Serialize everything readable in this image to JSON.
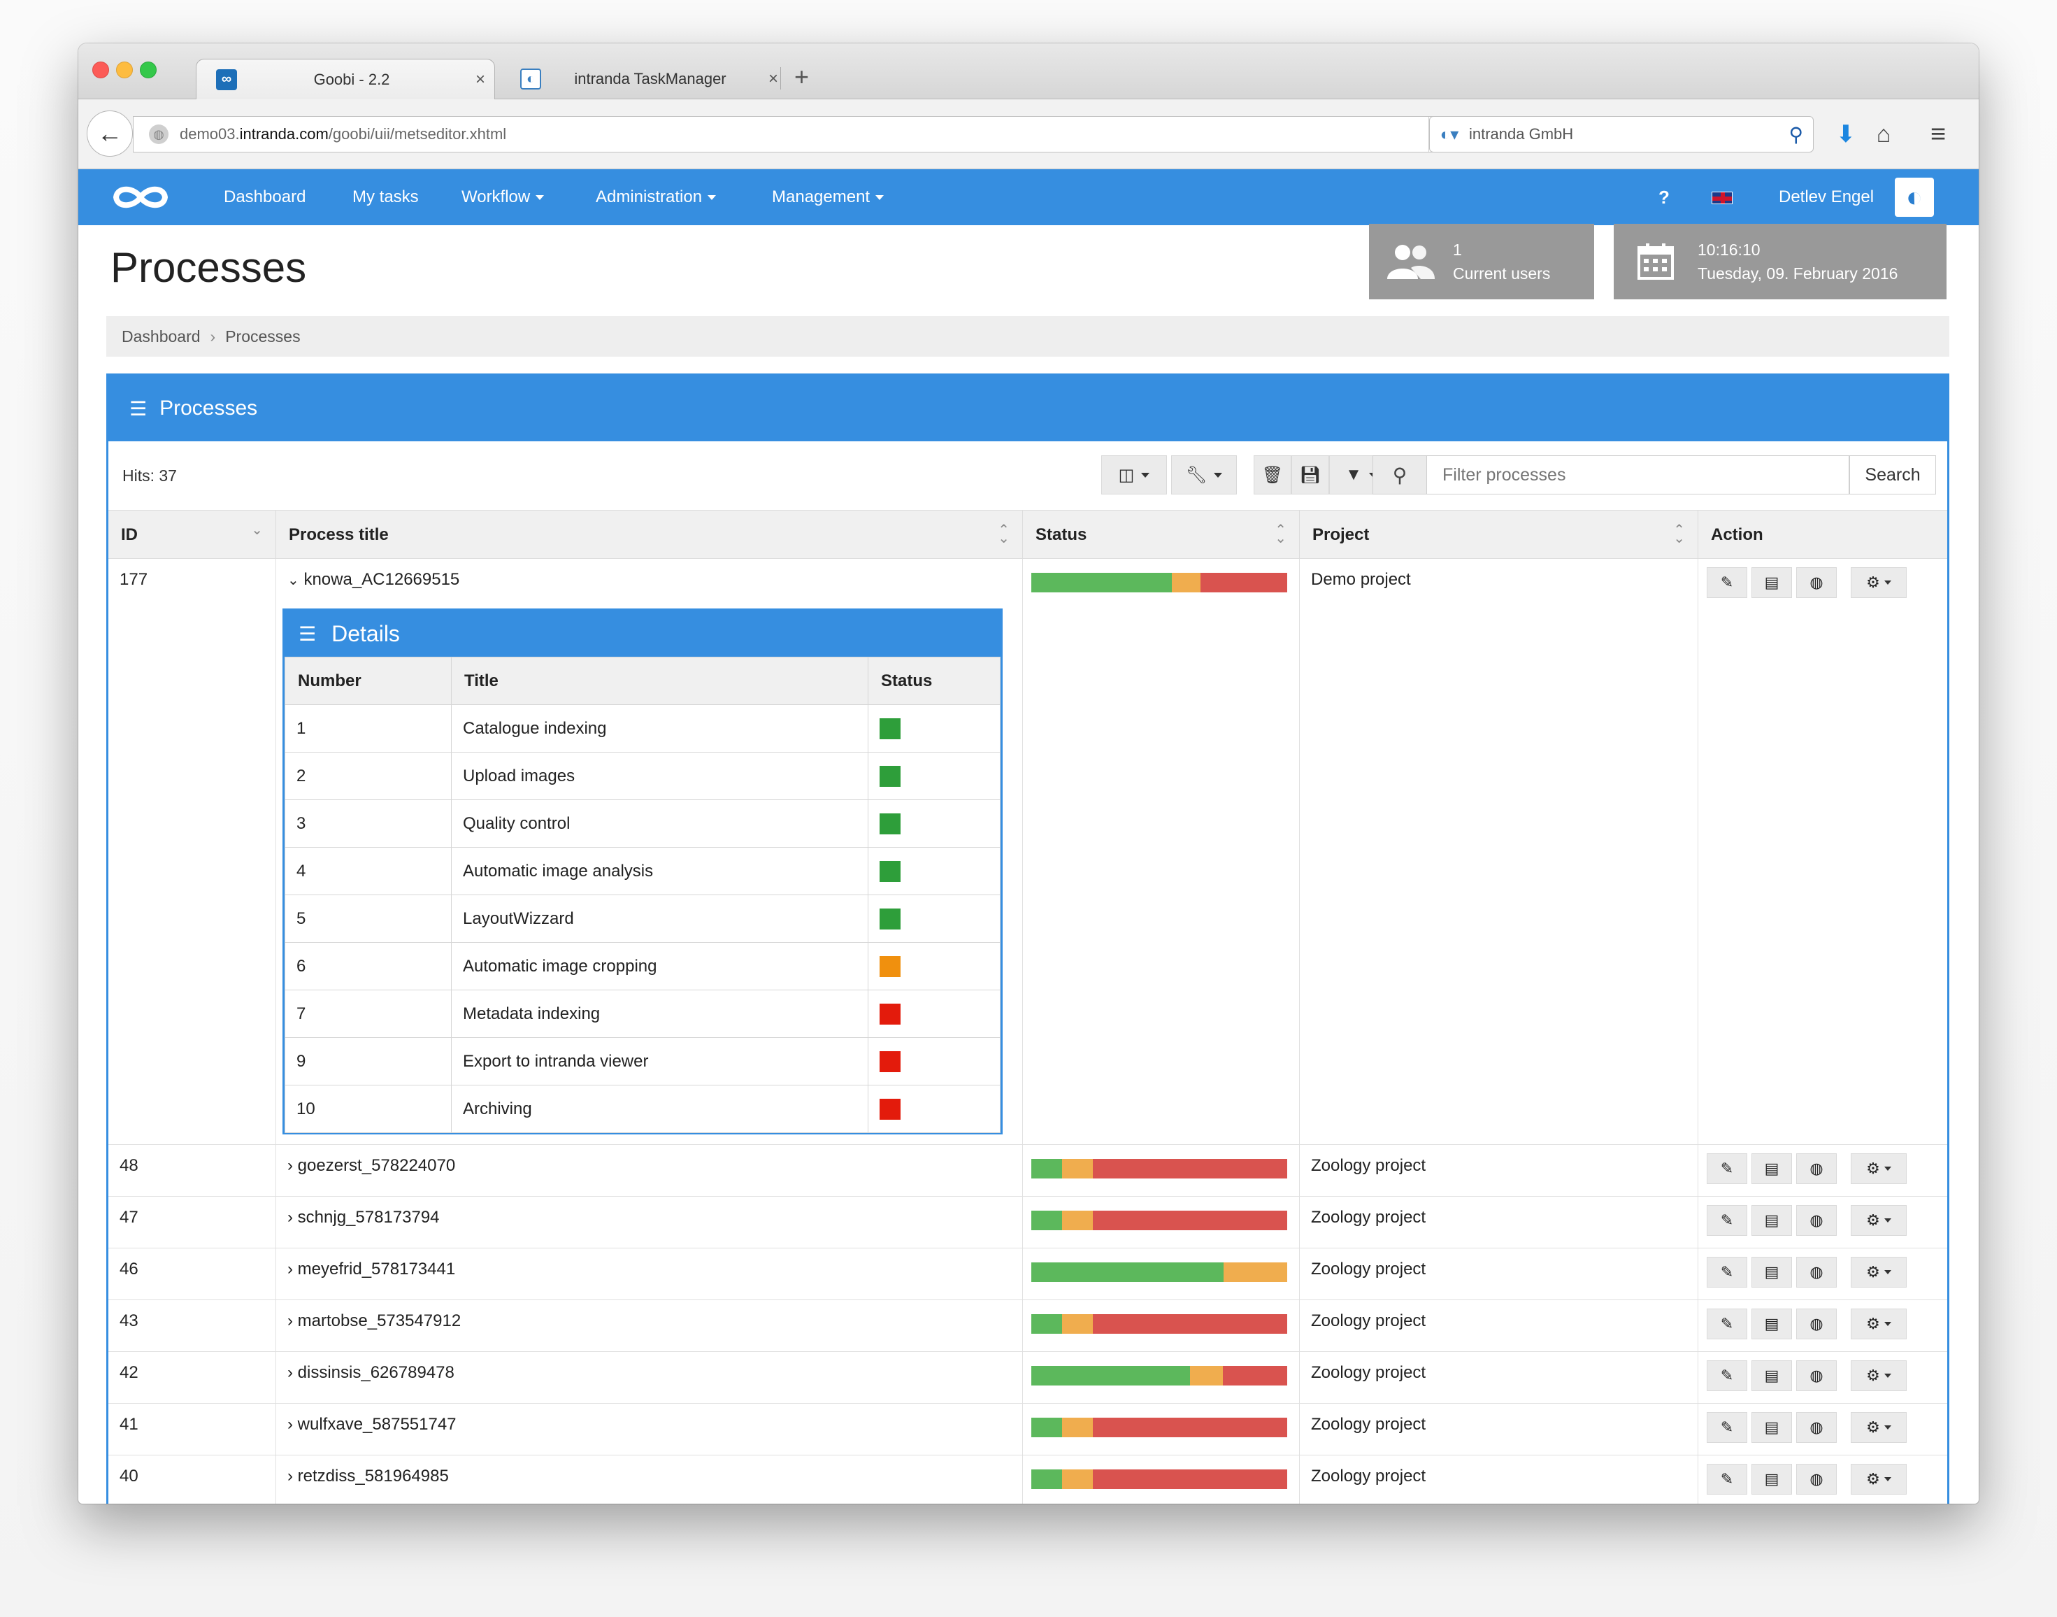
{
  "browser": {
    "tabs": [
      {
        "title": "Goobi - 2.2",
        "icon": "goobi-favicon",
        "active": true
      },
      {
        "title": "intranda TaskManager",
        "icon": "intranda-favicon",
        "active": false
      }
    ],
    "url_prefix": "demo03.",
    "url_domain": "intranda.com",
    "url_path": "/goobi/uii/metseditor.xhtml",
    "search_engine": "intranda GmbH"
  },
  "nav": {
    "items": [
      {
        "label": "Dashboard",
        "dropdown": false
      },
      {
        "label": "My tasks",
        "dropdown": false
      },
      {
        "label": "Workflow",
        "dropdown": true
      },
      {
        "label": "Administration",
        "dropdown": true
      },
      {
        "label": "Management",
        "dropdown": true
      }
    ],
    "help": "?",
    "user": "Detlev Engel"
  },
  "page": {
    "title": "Processes",
    "users_count": "1",
    "users_label": "Current users",
    "time": "10:16:10",
    "date": "Tuesday, 09. February 2016"
  },
  "breadcrumb": {
    "home": "Dashboard",
    "current": "Processes"
  },
  "panel": {
    "title": "Processes",
    "hits": "Hits: 37",
    "filter_placeholder": "Filter processes",
    "search_label": "Search"
  },
  "columns": {
    "id": "ID",
    "title": "Process title",
    "status": "Status",
    "project": "Project",
    "action": "Action"
  },
  "expanded": {
    "id": "177",
    "title": "knowa_AC12669515",
    "project": "Demo project",
    "status": {
      "done": 0.55,
      "open": 0.11,
      "locked": 0.34
    }
  },
  "details": {
    "title": "Details",
    "columns": {
      "number": "Number",
      "title": "Title",
      "status": "Status"
    },
    "steps": [
      {
        "number": "1",
        "title": "Catalogue indexing",
        "status": "done"
      },
      {
        "number": "2",
        "title": "Upload images",
        "status": "done"
      },
      {
        "number": "3",
        "title": "Quality control",
        "status": "done"
      },
      {
        "number": "4",
        "title": "Automatic image analysis",
        "status": "done"
      },
      {
        "number": "5",
        "title": "LayoutWizzard",
        "status": "done"
      },
      {
        "number": "6",
        "title": "Automatic image cropping",
        "status": "open"
      },
      {
        "number": "7",
        "title": "Metadata indexing",
        "status": "locked"
      },
      {
        "number": "9",
        "title": "Export to intranda viewer",
        "status": "locked"
      },
      {
        "number": "10",
        "title": "Archiving",
        "status": "locked"
      }
    ],
    "colors": {
      "done": "#2e9e3a",
      "open": "#f0900e",
      "locked": "#e31b0c"
    }
  },
  "rows": [
    {
      "id": "48",
      "title": "goezerst_578224070",
      "project": "Zoology project",
      "status": {
        "done": 0.12,
        "open": 0.12,
        "locked": 0.76
      }
    },
    {
      "id": "47",
      "title": "schnjg_578173794",
      "project": "Zoology project",
      "status": {
        "done": 0.12,
        "open": 0.12,
        "locked": 0.76
      }
    },
    {
      "id": "46",
      "title": "meyefrid_578173441",
      "project": "Zoology project",
      "status": {
        "done": 0.75,
        "open": 0.25,
        "locked": 0.0
      }
    },
    {
      "id": "43",
      "title": "martobse_573547912",
      "project": "Zoology project",
      "status": {
        "done": 0.12,
        "open": 0.12,
        "locked": 0.76
      }
    },
    {
      "id": "42",
      "title": "dissinsis_626789478",
      "project": "Zoology project",
      "status": {
        "done": 0.62,
        "open": 0.13,
        "locked": 0.25
      }
    },
    {
      "id": "41",
      "title": "wulfxave_587551747",
      "project": "Zoology project",
      "status": {
        "done": 0.12,
        "open": 0.12,
        "locked": 0.76
      }
    },
    {
      "id": "40",
      "title": "retzdiss_581964985",
      "project": "Zoology project",
      "status": {
        "done": 0.12,
        "open": 0.12,
        "locked": 0.76
      }
    }
  ]
}
